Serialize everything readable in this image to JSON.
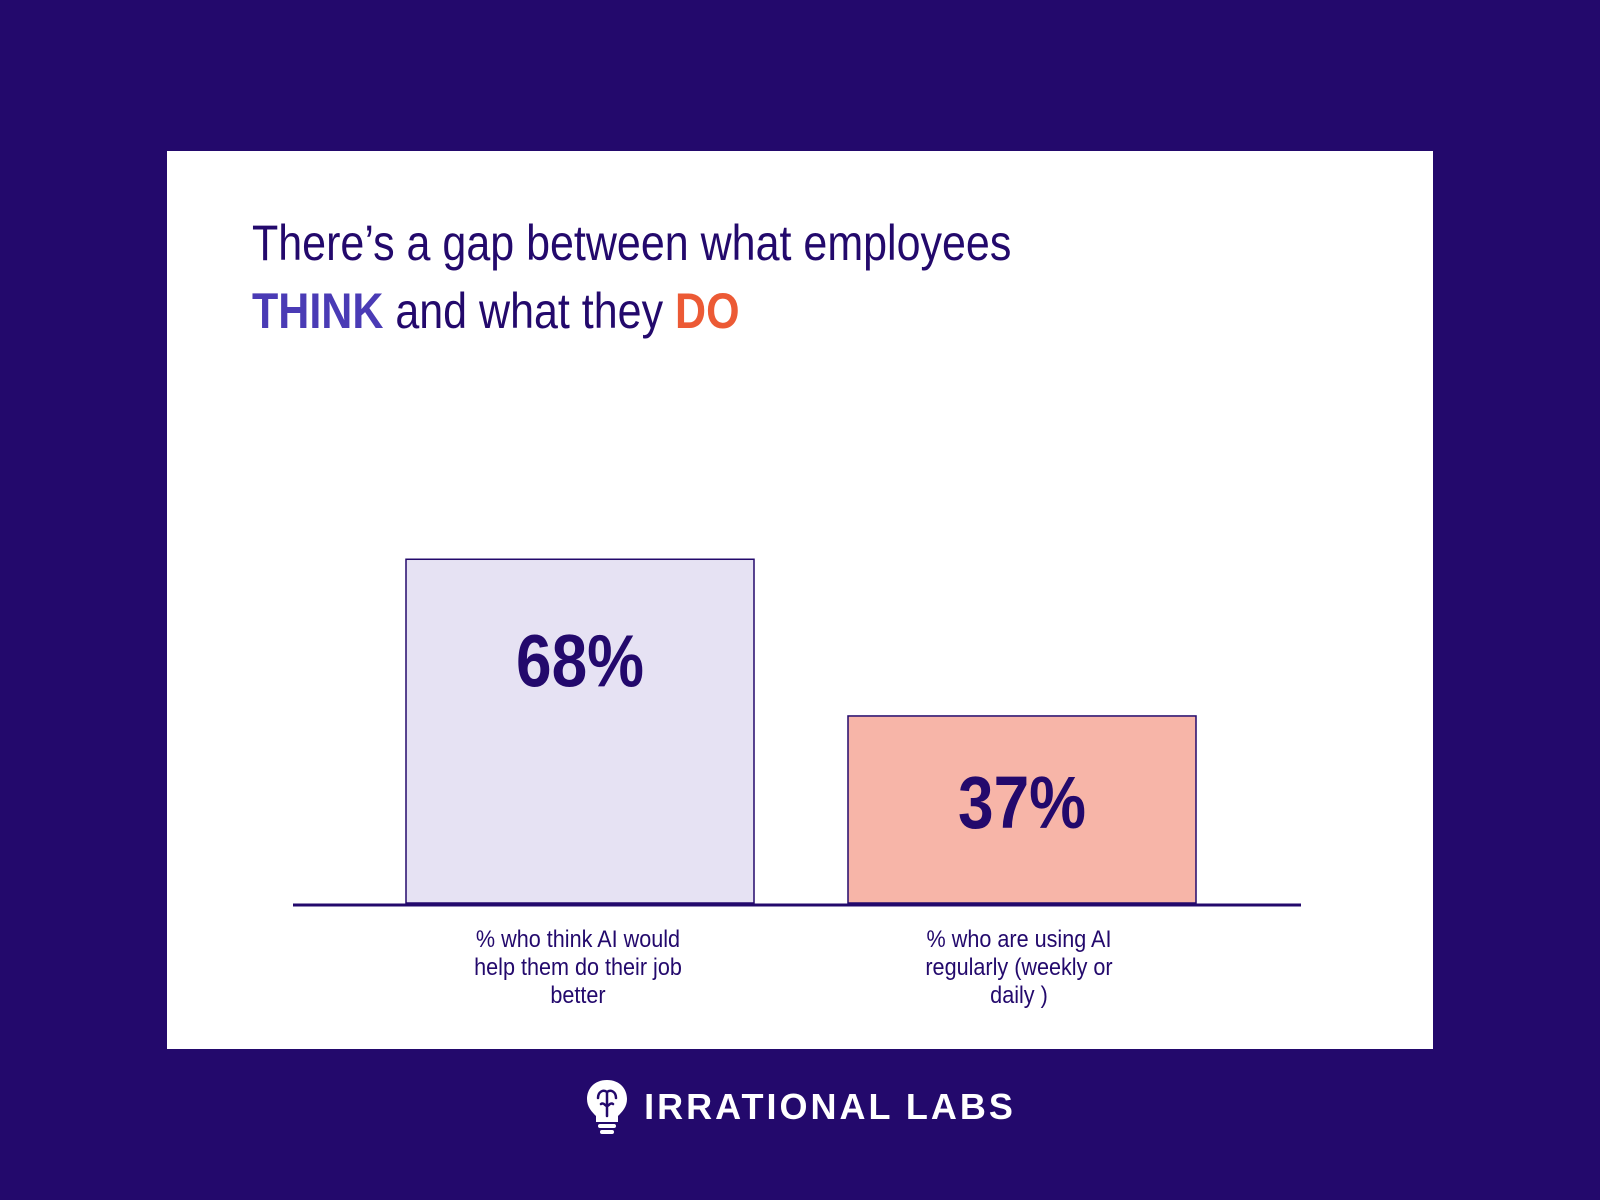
{
  "title": {
    "line1": "There’s a gap between what employees",
    "think": "THINK",
    "middle": " and what they ",
    "do": "DO"
  },
  "chart_data": {
    "type": "bar",
    "title": "There’s a gap between what employees THINK and what they DO",
    "categories": [
      "% who think AI would help them do their job better",
      "% who are using AI regularly (weekly or daily )"
    ],
    "values": [
      68,
      37
    ],
    "value_labels": [
      "68%",
      "37%"
    ],
    "bar_colors": [
      "#e6e2f3",
      "#f7b5a8"
    ],
    "bar_stroke": "#23096c",
    "ylim": [
      0,
      100
    ],
    "xlabel": "",
    "ylabel": "",
    "grid": false
  },
  "footer": {
    "brand": "IRRATIONAL LABS",
    "logo_icon": "brain-lightbulb-icon"
  },
  "colors": {
    "background": "#23096c",
    "card": "#ffffff",
    "think": "#4a3bb5",
    "do": "#ec5a35"
  }
}
